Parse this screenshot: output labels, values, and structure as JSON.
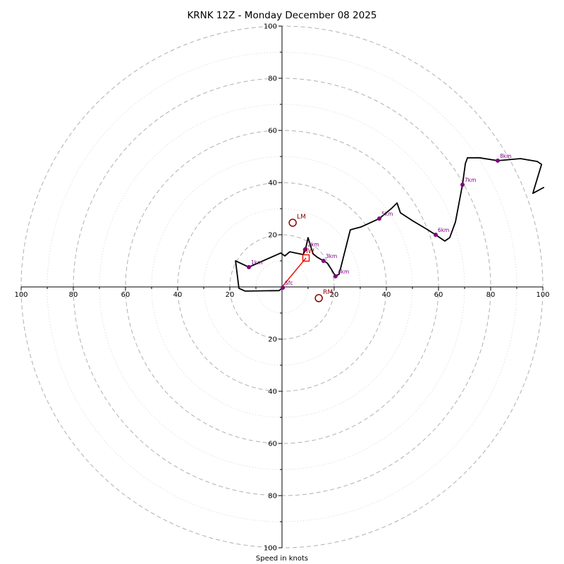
{
  "title": "KRNK 12Z - Monday December 08 2025",
  "colors": {
    "background": "#ffffff",
    "axis": "#000000",
    "ring_major": "#b0b0b0",
    "ring_minor": "#cccccc",
    "trace": "#000000",
    "km_marker": "#800080",
    "storm_marker": "#8b0000",
    "mean_wind": "#ee1100"
  },
  "chart_data": {
    "type": "line",
    "subtype": "hodograph",
    "title": "KRNK 12Z - Monday December 08 2025",
    "xlabel": "Speed in knots",
    "units": "knots",
    "axis_max": 100,
    "rings_major": [
      20,
      40,
      60,
      80,
      100
    ],
    "rings_minor": [
      10,
      30,
      50,
      70,
      90
    ],
    "axis_tick_labels": [
      20,
      40,
      60,
      80,
      100
    ],
    "grid": "polar-dashed",
    "trace_uv": [
      [
        0.3,
        -0.3
      ],
      [
        -1.1,
        -1.4
      ],
      [
        -14.1,
        -1.6
      ],
      [
        -16.5,
        -0.5
      ],
      [
        -17.8,
        10.0
      ],
      [
        -12.7,
        7.6
      ],
      [
        -0.5,
        13.0
      ],
      [
        1.1,
        11.9
      ],
      [
        3.0,
        13.5
      ],
      [
        8.1,
        12.4
      ],
      [
        9.0,
        14.5
      ],
      [
        10.0,
        18.9
      ],
      [
        11.9,
        12.7
      ],
      [
        13.5,
        11.4
      ],
      [
        15.9,
        10.0
      ],
      [
        17.3,
        9.2
      ],
      [
        18.9,
        6.8
      ],
      [
        20.5,
        4.1
      ],
      [
        21.9,
        4.9
      ],
      [
        26.2,
        21.9
      ],
      [
        30.3,
        23.0
      ],
      [
        37.3,
        26.2
      ],
      [
        42.2,
        30.3
      ],
      [
        44.1,
        32.2
      ],
      [
        45.4,
        28.4
      ],
      [
        50.0,
        25.4
      ],
      [
        55.4,
        22.2
      ],
      [
        58.9,
        20.0
      ],
      [
        62.4,
        17.6
      ],
      [
        64.3,
        18.9
      ],
      [
        66.5,
        24.9
      ],
      [
        69.2,
        39.2
      ],
      [
        70.3,
        47.3
      ],
      [
        71.1,
        49.5
      ],
      [
        75.7,
        49.5
      ],
      [
        82.7,
        48.4
      ],
      [
        91.4,
        49.2
      ],
      [
        97.8,
        48.1
      ],
      [
        99.5,
        47.0
      ],
      [
        96.5,
        37.0
      ],
      [
        96.2,
        35.9
      ],
      [
        100.3,
        38.1
      ]
    ],
    "height_markers": [
      {
        "label": "Sfc",
        "u": 0.3,
        "v": -0.3
      },
      {
        "label": "1km",
        "u": -12.7,
        "v": 7.6
      },
      {
        "label": "2km",
        "u": 9.0,
        "v": 14.5
      },
      {
        "label": "3km",
        "u": 15.9,
        "v": 10.0
      },
      {
        "label": "4km",
        "u": 20.5,
        "v": 4.1
      },
      {
        "label": "5km",
        "u": 37.3,
        "v": 26.2
      },
      {
        "label": "6km",
        "u": 58.9,
        "v": 20.0
      },
      {
        "label": "7km",
        "u": 69.2,
        "v": 39.2
      },
      {
        "label": "8km",
        "u": 82.7,
        "v": 48.4
      }
    ],
    "storm_motion_markers": [
      {
        "label": "LM",
        "u": 4.1,
        "v": 24.6
      },
      {
        "label": "RM",
        "u": 14.1,
        "v": -4.3
      }
    ],
    "mean_wind_marker": {
      "label": "MW",
      "u": 9.2,
      "v": 11.1
    },
    "mean_wind_vector": {
      "from_u": 0,
      "from_v": 0,
      "to_u": 9.2,
      "to_v": 11.1
    }
  }
}
